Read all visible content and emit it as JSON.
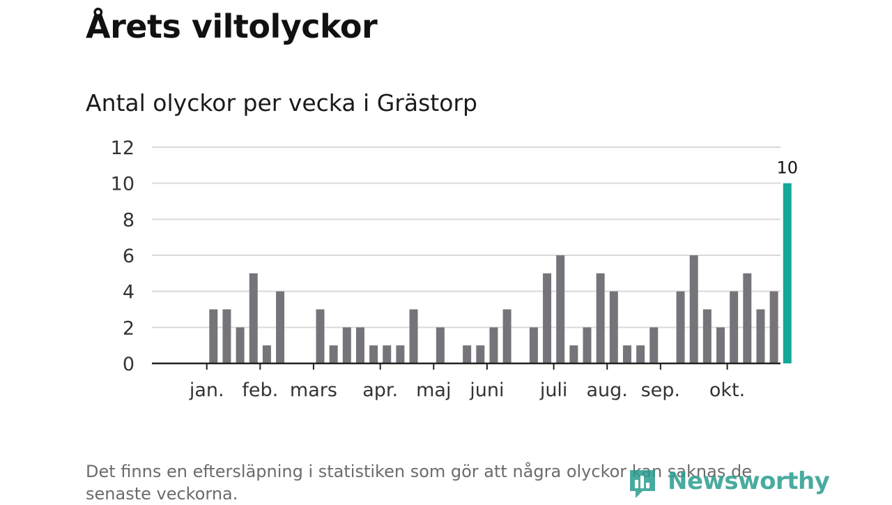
{
  "title": "Årets viltolyckor",
  "subtitle": "Antal olyckor per vecka i Grästorp",
  "footnote": "Det finns en eftersläpning i statistiken som gör att några olyckor kan saknas de senaste veckorna.",
  "brand": {
    "name": "Newsworthy",
    "icon": "newsworthy-logo-icon",
    "color": "#2a9d8f"
  },
  "colors": {
    "bar": "#76747a",
    "highlight": "#14a899",
    "grid": "#d9d9d9",
    "axis": "#222222",
    "tick_text": "#333333"
  },
  "chart_data": {
    "type": "bar",
    "title": "Antal olyckor per vecka i Grästorp",
    "xlabel": "",
    "ylabel": "",
    "ylim": [
      0,
      12
    ],
    "y_ticks": [
      "0",
      "2",
      "4",
      "6",
      "8",
      "10",
      "12"
    ],
    "grid": true,
    "x_unit": "vecka",
    "x": [
      1,
      2,
      3,
      4,
      5,
      6,
      7,
      8,
      9,
      10,
      11,
      12,
      13,
      14,
      15,
      16,
      17,
      18,
      19,
      20,
      21,
      22,
      23,
      24,
      25,
      26,
      27,
      28,
      29,
      30,
      31,
      32,
      33,
      34,
      35,
      36,
      37,
      38,
      39,
      40,
      41,
      42,
      43,
      44
    ],
    "values": [
      0,
      0,
      3,
      3,
      2,
      5,
      1,
      4,
      0,
      0,
      3,
      1,
      2,
      2,
      1,
      1,
      1,
      3,
      0,
      2,
      0,
      1,
      1,
      2,
      3,
      0,
      2,
      5,
      6,
      1,
      2,
      5,
      4,
      1,
      1,
      2,
      0,
      4,
      6,
      3,
      2,
      4,
      5,
      3
    ],
    "extra_values": [
      4,
      10
    ],
    "month_labels": [
      {
        "label": "jan.",
        "week": 2.5
      },
      {
        "label": "feb.",
        "week": 6.5
      },
      {
        "label": "mars",
        "week": 10.5
      },
      {
        "label": "apr.",
        "week": 15.5
      },
      {
        "label": "maj",
        "week": 19.5
      },
      {
        "label": "juni",
        "week": 23.5
      },
      {
        "label": "juli",
        "week": 28.5
      },
      {
        "label": "aug.",
        "week": 32.5
      },
      {
        "label": "sep.",
        "week": 36.5
      },
      {
        "label": "okt.",
        "week": 41.5
      }
    ],
    "highlight_label": "10"
  }
}
